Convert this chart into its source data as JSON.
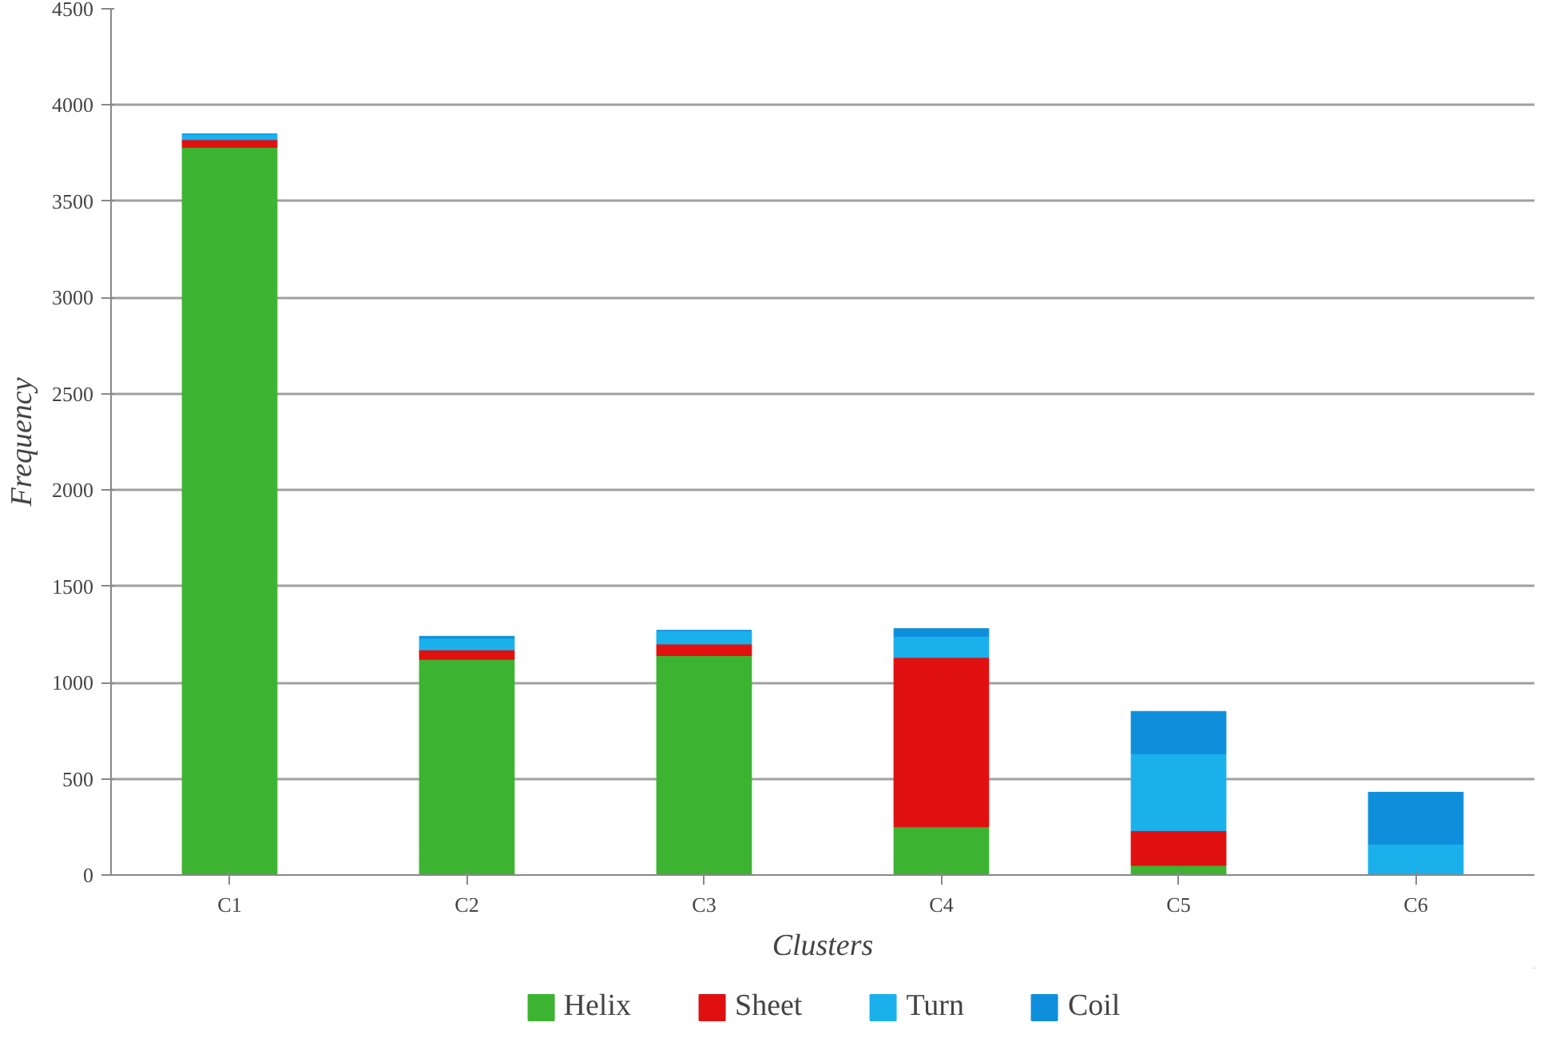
{
  "chart_data": {
    "type": "bar",
    "stacked": true,
    "xlabel": "Clusters",
    "ylabel": "Frequency",
    "categories": [
      "C1",
      "C2",
      "C3",
      "C4",
      "C5",
      "C6"
    ],
    "series": [
      {
        "name": "Helix",
        "color": "#3cb431",
        "values": [
          3780,
          1120,
          1140,
          250,
          50,
          0
        ]
      },
      {
        "name": "Sheet",
        "color": "#e01010",
        "values": [
          40,
          50,
          60,
          880,
          180,
          0
        ]
      },
      {
        "name": "Turn",
        "color": "#1ab0ec",
        "values": [
          30,
          60,
          70,
          110,
          400,
          160
        ]
      },
      {
        "name": "Coil",
        "color": "#0f8fdb",
        "values": [
          0,
          10,
          0,
          40,
          220,
          270
        ]
      }
    ],
    "ylim": [
      0,
      4500
    ],
    "yticks": [
      0,
      500,
      1000,
      1500,
      2000,
      2500,
      3000,
      3500,
      4000,
      4500
    ],
    "grid": "y",
    "legend": "bottom"
  }
}
